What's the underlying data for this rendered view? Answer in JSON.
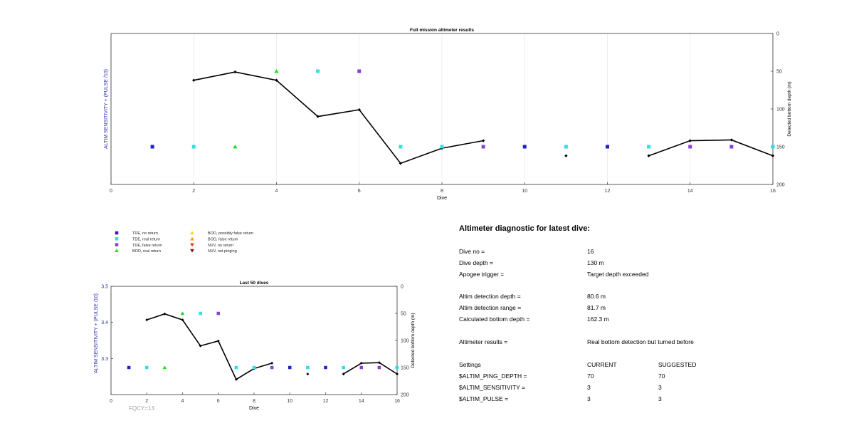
{
  "colors": {
    "tde_no_return": "#1f1fd1",
    "tde_real_return": "#33dde0",
    "tde_false_return": "#8a3fd6",
    "bod_real_return": "#22dd22",
    "bod_possibly_false": "#ffd21f",
    "bod_false_return": "#ff9a1a",
    "nvv_no_return": "#e23a1a",
    "nvv_not_pinging": "#7a1010",
    "depth_line": "#000000",
    "left_axis_label": "#2b2bb0",
    "fqcy": "#a0a0a0"
  },
  "legend": [
    {
      "label": "TDE, no return",
      "marker": "square",
      "color": "#1f1fd1"
    },
    {
      "label": "TDE, real return",
      "marker": "square",
      "color": "#33dde0"
    },
    {
      "label": "TDE, false return",
      "marker": "square",
      "color": "#8a3fd6"
    },
    {
      "label": "BOD, real return",
      "marker": "triangle-up",
      "color": "#22dd22"
    },
    {
      "label": "BOD, possibly false return",
      "marker": "triangle-up",
      "color": "#ffd21f"
    },
    {
      "label": "BOD, false return",
      "marker": "triangle-up",
      "color": "#ff9a1a"
    },
    {
      "label": "NVV, no return",
      "marker": "triangle-down",
      "color": "#e23a1a"
    },
    {
      "label": "NVV, not pinging",
      "marker": "triangle-down",
      "color": "#7a1010"
    }
  ],
  "chart_data": [
    {
      "type": "scatter",
      "title": "Full mission altimeter results",
      "xlabel": "Dive",
      "ylabel_left": "ALTIM SENSITIVITY + (PULSE /10)",
      "ylabel_right": "Detected bottom depth (m)",
      "xlim": [
        0,
        16
      ],
      "xticks": [
        0,
        2,
        4,
        6,
        8,
        10,
        12,
        14,
        16
      ],
      "ylim_right": [
        0,
        200
      ],
      "yticks_right": [
        0,
        50,
        100,
        150,
        200
      ],
      "right_axis_reversed": true,
      "grid_x": true,
      "markers": [
        {
          "dive": 1,
          "depth": 150,
          "type": "TDE, no return"
        },
        {
          "dive": 2,
          "depth": 150,
          "type": "TDE, real return"
        },
        {
          "dive": 3,
          "depth": 150,
          "type": "BOD, real return"
        },
        {
          "dive": 4,
          "depth": 50,
          "type": "BOD, real return"
        },
        {
          "dive": 5,
          "depth": 50,
          "type": "TDE, real return"
        },
        {
          "dive": 6,
          "depth": 50,
          "type": "TDE, false return"
        },
        {
          "dive": 7,
          "depth": 150,
          "type": "TDE, real return"
        },
        {
          "dive": 8,
          "depth": 150,
          "type": "TDE, real return"
        },
        {
          "dive": 9,
          "depth": 150,
          "type": "TDE, false return"
        },
        {
          "dive": 10,
          "depth": 150,
          "type": "TDE, no return"
        },
        {
          "dive": 11,
          "depth": 150,
          "type": "TDE, real return"
        },
        {
          "dive": 12,
          "depth": 150,
          "type": "TDE, no return"
        },
        {
          "dive": 13,
          "depth": 150,
          "type": "TDE, real return"
        },
        {
          "dive": 14,
          "depth": 150,
          "type": "TDE, false return"
        },
        {
          "dive": 15,
          "depth": 150,
          "type": "TDE, false return"
        },
        {
          "dive": 16,
          "depth": 150,
          "type": "TDE, real return"
        }
      ],
      "depth_segments": [
        [
          [
            2,
            62
          ],
          [
            3,
            51
          ],
          [
            4,
            62
          ],
          [
            5,
            110
          ],
          [
            6,
            101
          ],
          [
            7,
            172
          ],
          [
            8,
            152
          ],
          [
            9,
            142
          ]
        ],
        [
          [
            11,
            162
          ]
        ],
        [
          [
            13,
            162
          ],
          [
            14,
            142
          ],
          [
            15,
            141
          ],
          [
            16,
            162
          ]
        ]
      ]
    },
    {
      "type": "scatter",
      "title": "Last 50 dives",
      "xlabel": "Dive",
      "ylabel_left": "ALTIM SENSITIVITY + (PULSE /10)",
      "ylabel_right": "Detected bottom depth (m)",
      "xlim": [
        0,
        16
      ],
      "xticks": [
        0,
        2,
        4,
        6,
        8,
        10,
        12,
        14,
        16
      ],
      "ylim_left": [
        3.2,
        3.5
      ],
      "yticks_left": [
        3.3,
        3.4,
        3.5
      ],
      "ylim_right": [
        0,
        200
      ],
      "yticks_right": [
        0,
        50,
        100,
        150,
        200
      ],
      "right_axis_reversed": true,
      "grid_x": false,
      "annotation": "FQCY=13",
      "markers": [
        {
          "dive": 1,
          "depth": 150,
          "type": "TDE, no return"
        },
        {
          "dive": 2,
          "depth": 150,
          "type": "TDE, real return"
        },
        {
          "dive": 3,
          "depth": 150,
          "type": "BOD, real return"
        },
        {
          "dive": 4,
          "depth": 50,
          "type": "BOD, real return"
        },
        {
          "dive": 5,
          "depth": 50,
          "type": "TDE, real return"
        },
        {
          "dive": 6,
          "depth": 50,
          "type": "TDE, false return"
        },
        {
          "dive": 7,
          "depth": 150,
          "type": "TDE, real return"
        },
        {
          "dive": 8,
          "depth": 150,
          "type": "TDE, real return"
        },
        {
          "dive": 9,
          "depth": 150,
          "type": "TDE, false return"
        },
        {
          "dive": 10,
          "depth": 150,
          "type": "TDE, no return"
        },
        {
          "dive": 11,
          "depth": 150,
          "type": "TDE, real return"
        },
        {
          "dive": 12,
          "depth": 150,
          "type": "TDE, no return"
        },
        {
          "dive": 13,
          "depth": 150,
          "type": "TDE, real return"
        },
        {
          "dive": 14,
          "depth": 150,
          "type": "TDE, false return"
        },
        {
          "dive": 15,
          "depth": 150,
          "type": "TDE, false return"
        },
        {
          "dive": 16,
          "depth": 150,
          "type": "TDE, real return"
        }
      ],
      "depth_segments": [
        [
          [
            2,
            62
          ],
          [
            3,
            51
          ],
          [
            4,
            62
          ],
          [
            5,
            110
          ],
          [
            6,
            101
          ],
          [
            7,
            172
          ],
          [
            8,
            152
          ],
          [
            9,
            142
          ]
        ],
        [
          [
            11,
            162
          ]
        ],
        [
          [
            13,
            162
          ],
          [
            14,
            142
          ],
          [
            15,
            141
          ],
          [
            16,
            162
          ]
        ]
      ]
    }
  ],
  "diagnostic": {
    "title": "Altimeter diagnostic for latest dive:",
    "dive_no_label": "Dive no =",
    "dive_no_value": "16",
    "dive_depth_label": "Dive depth =",
    "dive_depth_value": "130 m",
    "apogee_label": "Apogee trigger =",
    "apogee_value": "Target depth exceeded",
    "detection_depth_label": "Altim detection depth =",
    "detection_depth_value": "80.6 m",
    "detection_range_label": "Altim detection range =",
    "detection_range_value": "81.7 m",
    "bottom_depth_label": "Calculated bottom depth =",
    "bottom_depth_value": "162.3 m",
    "results_label": "Altimeter results =",
    "results_value": "Real bottom detection but turned before",
    "settings_label": "Settings",
    "current_label": "CURRENT",
    "suggested_label": "SUGGESTED",
    "settings": [
      {
        "name": "$ALTIM_PING_DEPTH =",
        "current": "70",
        "suggested": "70"
      },
      {
        "name": "$ALTIM_SENSITIVITY =",
        "current": "3",
        "suggested": "3"
      },
      {
        "name": "$ALTIM_PULSE =",
        "current": "3",
        "suggested": "3"
      }
    ]
  }
}
